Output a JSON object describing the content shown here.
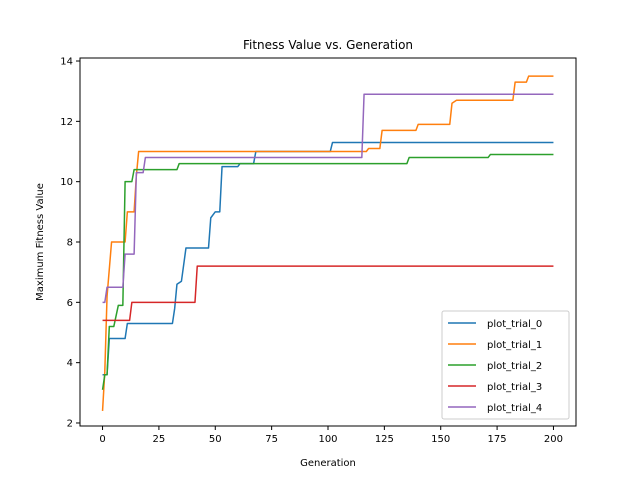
{
  "chart_data": {
    "type": "line",
    "title": "Fitness Value vs. Generation",
    "xlabel": "Generation",
    "ylabel": "Maximum Fitness Value",
    "xlim": [
      -10,
      210
    ],
    "ylim": [
      1.9,
      14.1
    ],
    "xticks": [
      0,
      25,
      50,
      75,
      100,
      125,
      150,
      175,
      200
    ],
    "yticks": [
      2,
      4,
      6,
      8,
      10,
      12,
      14
    ],
    "grid": false,
    "legend": "lower-right",
    "series": [
      {
        "name": "plot_trial_0",
        "color": "#1f77b4",
        "points": [
          [
            0,
            3.6
          ],
          [
            1,
            3.6
          ],
          [
            2,
            3.6
          ],
          [
            3,
            4.8
          ],
          [
            10,
            4.8
          ],
          [
            11,
            5.3
          ],
          [
            31,
            5.3
          ],
          [
            32,
            5.8
          ],
          [
            33,
            6.6
          ],
          [
            35,
            6.7
          ],
          [
            37,
            7.8
          ],
          [
            47,
            7.8
          ],
          [
            48,
            8.8
          ],
          [
            50,
            9.0
          ],
          [
            52,
            9.0
          ],
          [
            53,
            10.5
          ],
          [
            60,
            10.5
          ],
          [
            61,
            10.6
          ],
          [
            67,
            10.6
          ],
          [
            68,
            11.0
          ],
          [
            101,
            11.0
          ],
          [
            102,
            11.3
          ],
          [
            200,
            11.3
          ]
        ]
      },
      {
        "name": "plot_trial_1",
        "color": "#ff7f0e",
        "points": [
          [
            0,
            2.4
          ],
          [
            1,
            3.7
          ],
          [
            2,
            6.2
          ],
          [
            4,
            8.0
          ],
          [
            10,
            8.0
          ],
          [
            11,
            9.0
          ],
          [
            14,
            9.0
          ],
          [
            15,
            10.2
          ],
          [
            16,
            11.0
          ],
          [
            117,
            11.0
          ],
          [
            118,
            11.1
          ],
          [
            123,
            11.1
          ],
          [
            124,
            11.7
          ],
          [
            139,
            11.7
          ],
          [
            140,
            11.9
          ],
          [
            154,
            11.9
          ],
          [
            155,
            12.6
          ],
          [
            157,
            12.7
          ],
          [
            182,
            12.7
          ],
          [
            183,
            13.3
          ],
          [
            188,
            13.3
          ],
          [
            189,
            13.5
          ],
          [
            200,
            13.5
          ]
        ]
      },
      {
        "name": "plot_trial_2",
        "color": "#2ca02c",
        "points": [
          [
            0,
            3.1
          ],
          [
            1,
            3.6
          ],
          [
            2,
            3.6
          ],
          [
            3,
            5.2
          ],
          [
            5,
            5.2
          ],
          [
            7,
            5.9
          ],
          [
            9,
            5.9
          ],
          [
            10,
            10.0
          ],
          [
            13,
            10.0
          ],
          [
            14,
            10.4
          ],
          [
            33,
            10.4
          ],
          [
            34,
            10.6
          ],
          [
            135,
            10.6
          ],
          [
            136,
            10.8
          ],
          [
            171,
            10.8
          ],
          [
            172,
            10.9
          ],
          [
            200,
            10.9
          ]
        ]
      },
      {
        "name": "plot_trial_3",
        "color": "#d62728",
        "points": [
          [
            0,
            5.4
          ],
          [
            12,
            5.4
          ],
          [
            13,
            6.0
          ],
          [
            41,
            6.0
          ],
          [
            42,
            7.2
          ],
          [
            200,
            7.2
          ]
        ]
      },
      {
        "name": "plot_trial_4",
        "color": "#9467bd",
        "points": [
          [
            0,
            6.0
          ],
          [
            1,
            6.0
          ],
          [
            2,
            6.5
          ],
          [
            9,
            6.5
          ],
          [
            10,
            7.6
          ],
          [
            14,
            7.6
          ],
          [
            15,
            10.3
          ],
          [
            18,
            10.3
          ],
          [
            19,
            10.8
          ],
          [
            66,
            10.8
          ],
          [
            67,
            10.8
          ],
          [
            115,
            10.8
          ],
          [
            116,
            12.9
          ],
          [
            155,
            12.9
          ],
          [
            156,
            12.9
          ],
          [
            200,
            12.9
          ]
        ]
      }
    ]
  }
}
